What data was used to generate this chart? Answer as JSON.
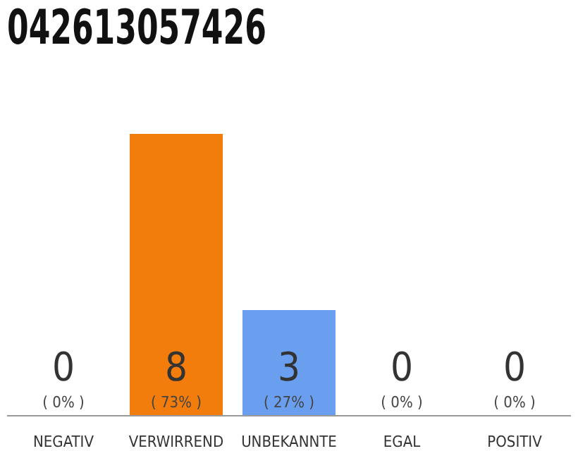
{
  "chart_data": {
    "type": "bar",
    "title": "042613057426",
    "categories": [
      "NEGATIV",
      "VERWIRREND",
      "UNBEKANNTE",
      "EGAL",
      "POSITIV"
    ],
    "values": [
      0,
      8,
      3,
      0,
      0
    ],
    "colors": [
      "#eeeeee",
      "#f27c0c",
      "#6a9ff0",
      "#eeeeee",
      "#eeeeee"
    ],
    "data_labels": true,
    "annotations": [
      "( 0% )",
      "( 73% )",
      "( 27% )",
      "( 0% )",
      "( 0% )"
    ],
    "grid": false,
    "legend": false
  }
}
